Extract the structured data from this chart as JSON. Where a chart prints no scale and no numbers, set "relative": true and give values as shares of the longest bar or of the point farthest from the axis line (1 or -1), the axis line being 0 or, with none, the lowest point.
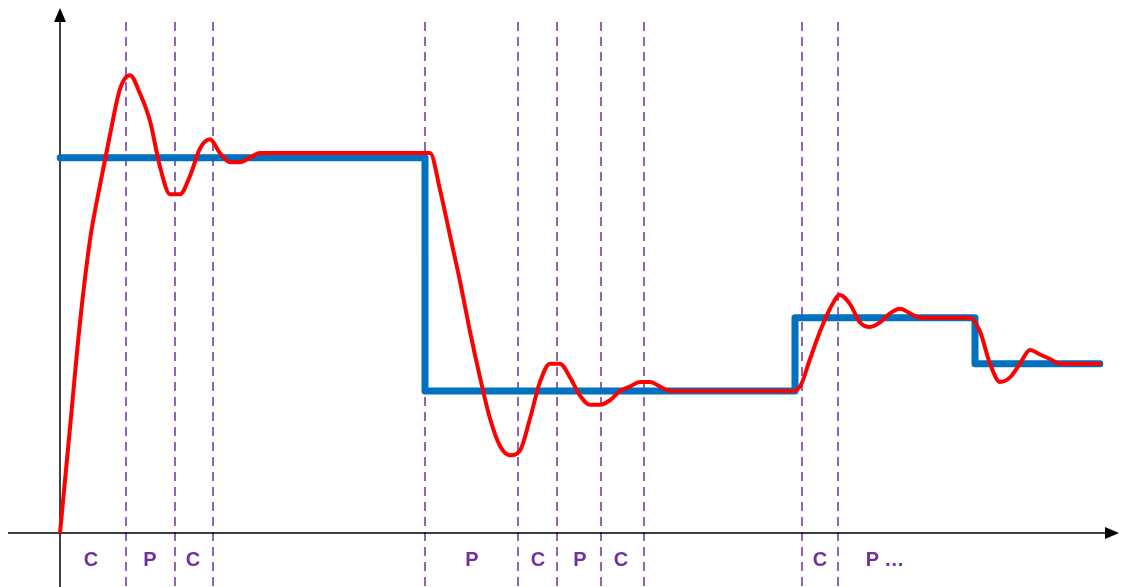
{
  "chart_data": {
    "type": "line",
    "relative": true,
    "legend": false,
    "marker": "none",
    "line_style": "solid",
    "categories": [
      null,
      null,
      null,
      null,
      null,
      null,
      null,
      null,
      null,
      null,
      null,
      null,
      null,
      null,
      null,
      null,
      null,
      null,
      null,
      null,
      null,
      null,
      null,
      null,
      null,
      null,
      null,
      null,
      null,
      null,
      null,
      null,
      null,
      null,
      null,
      null,
      null,
      null,
      null,
      null,
      null,
      null,
      null,
      null,
      null,
      null,
      null,
      null,
      null,
      null,
      null,
      null,
      null,
      null,
      null,
      null,
      null,
      null,
      null,
      null,
      null,
      null,
      null,
      null,
      null,
      null,
      null,
      null,
      null,
      null,
      null,
      null,
      null,
      null,
      null,
      null,
      null,
      null,
      null,
      null,
      null,
      null,
      null,
      null,
      null,
      null,
      null,
      null,
      null,
      null,
      null,
      null,
      null,
      null,
      null,
      null,
      null,
      null,
      null,
      null,
      null,
      null,
      null,
      null,
      null
    ],
    "series": [
      {
        "type": "step",
        "color": "#0070c0",
        "values": [
          0.82,
          0.82,
          0.82,
          0.82,
          0.82,
          0.82,
          0.82,
          0.82,
          0.82,
          0.82,
          0.82,
          0.82,
          0.82,
          0.82,
          0.82,
          0.82,
          0.82,
          0.82,
          0.82,
          0.82,
          0.82,
          0.82,
          0.82,
          0.82,
          0.82,
          0.82,
          0.82,
          0.82,
          0.82,
          0.82,
          0.82,
          0.82,
          0.82,
          0.82,
          0.82,
          0.82,
          0.82,
          0.31,
          0.31,
          0.31,
          0.31,
          0.31,
          0.31,
          0.31,
          0.31,
          0.31,
          0.31,
          0.31,
          0.31,
          0.31,
          0.31,
          0.31,
          0.31,
          0.31,
          0.31,
          0.31,
          0.31,
          0.31,
          0.31,
          0.31,
          0.31,
          0.31,
          0.31,
          0.31,
          0.31,
          0.31,
          0.31,
          0.31,
          0.31,
          0.31,
          0.31,
          0.31,
          0.31,
          0.31,
          0.47,
          0.47,
          0.47,
          0.47,
          0.47,
          0.47,
          0.47,
          0.47,
          0.47,
          0.47,
          0.47,
          0.47,
          0.47,
          0.47,
          0.47,
          0.47,
          0.47,
          0.47,
          0.37,
          0.37,
          0.37,
          0.37,
          0.37,
          0.37,
          0.37,
          0.37,
          0.37,
          0.37,
          0.37,
          0.37,
          0.37
        ]
      },
      {
        "color": "#ff0000",
        "values": [
          0,
          0.23,
          0.46,
          0.64,
          0.76,
          0.87,
          0.97,
          1,
          0.96,
          0.9,
          0.8,
          0.74,
          0.74,
          0.78,
          0.84,
          0.86,
          0.83,
          0.81,
          0.81,
          0.82,
          0.83,
          0.83,
          0.83,
          0.83,
          0.83,
          0.83,
          0.83,
          0.83,
          0.83,
          0.83,
          0.83,
          0.83,
          0.83,
          0.83,
          0.83,
          0.83,
          0.83,
          0.83,
          0.75,
          0.65,
          0.55,
          0.44,
          0.34,
          0.25,
          0.19,
          0.17,
          0.18,
          0.25,
          0.33,
          0.37,
          0.37,
          0.34,
          0.3,
          0.28,
          0.28,
          0.29,
          0.31,
          0.32,
          0.33,
          0.33,
          0.32,
          0.31,
          0.31,
          0.31,
          0.31,
          0.31,
          0.31,
          0.31,
          0.31,
          0.31,
          0.31,
          0.31,
          0.31,
          0.31,
          0.32,
          0.38,
          0.44,
          0.49,
          0.52,
          0.5,
          0.46,
          0.45,
          0.46,
          0.48,
          0.49,
          0.48,
          0.47,
          0.47,
          0.47,
          0.47,
          0.47,
          0.47,
          0.44,
          0.37,
          0.33,
          0.34,
          0.37,
          0.4,
          0.39,
          0.38,
          0.37,
          0.37,
          0.37,
          0.37,
          0.37
        ]
      }
    ],
    "annotations": [
      "C",
      "P",
      "C",
      "P",
      "C",
      "P",
      "C",
      "C",
      "P …"
    ]
  }
}
